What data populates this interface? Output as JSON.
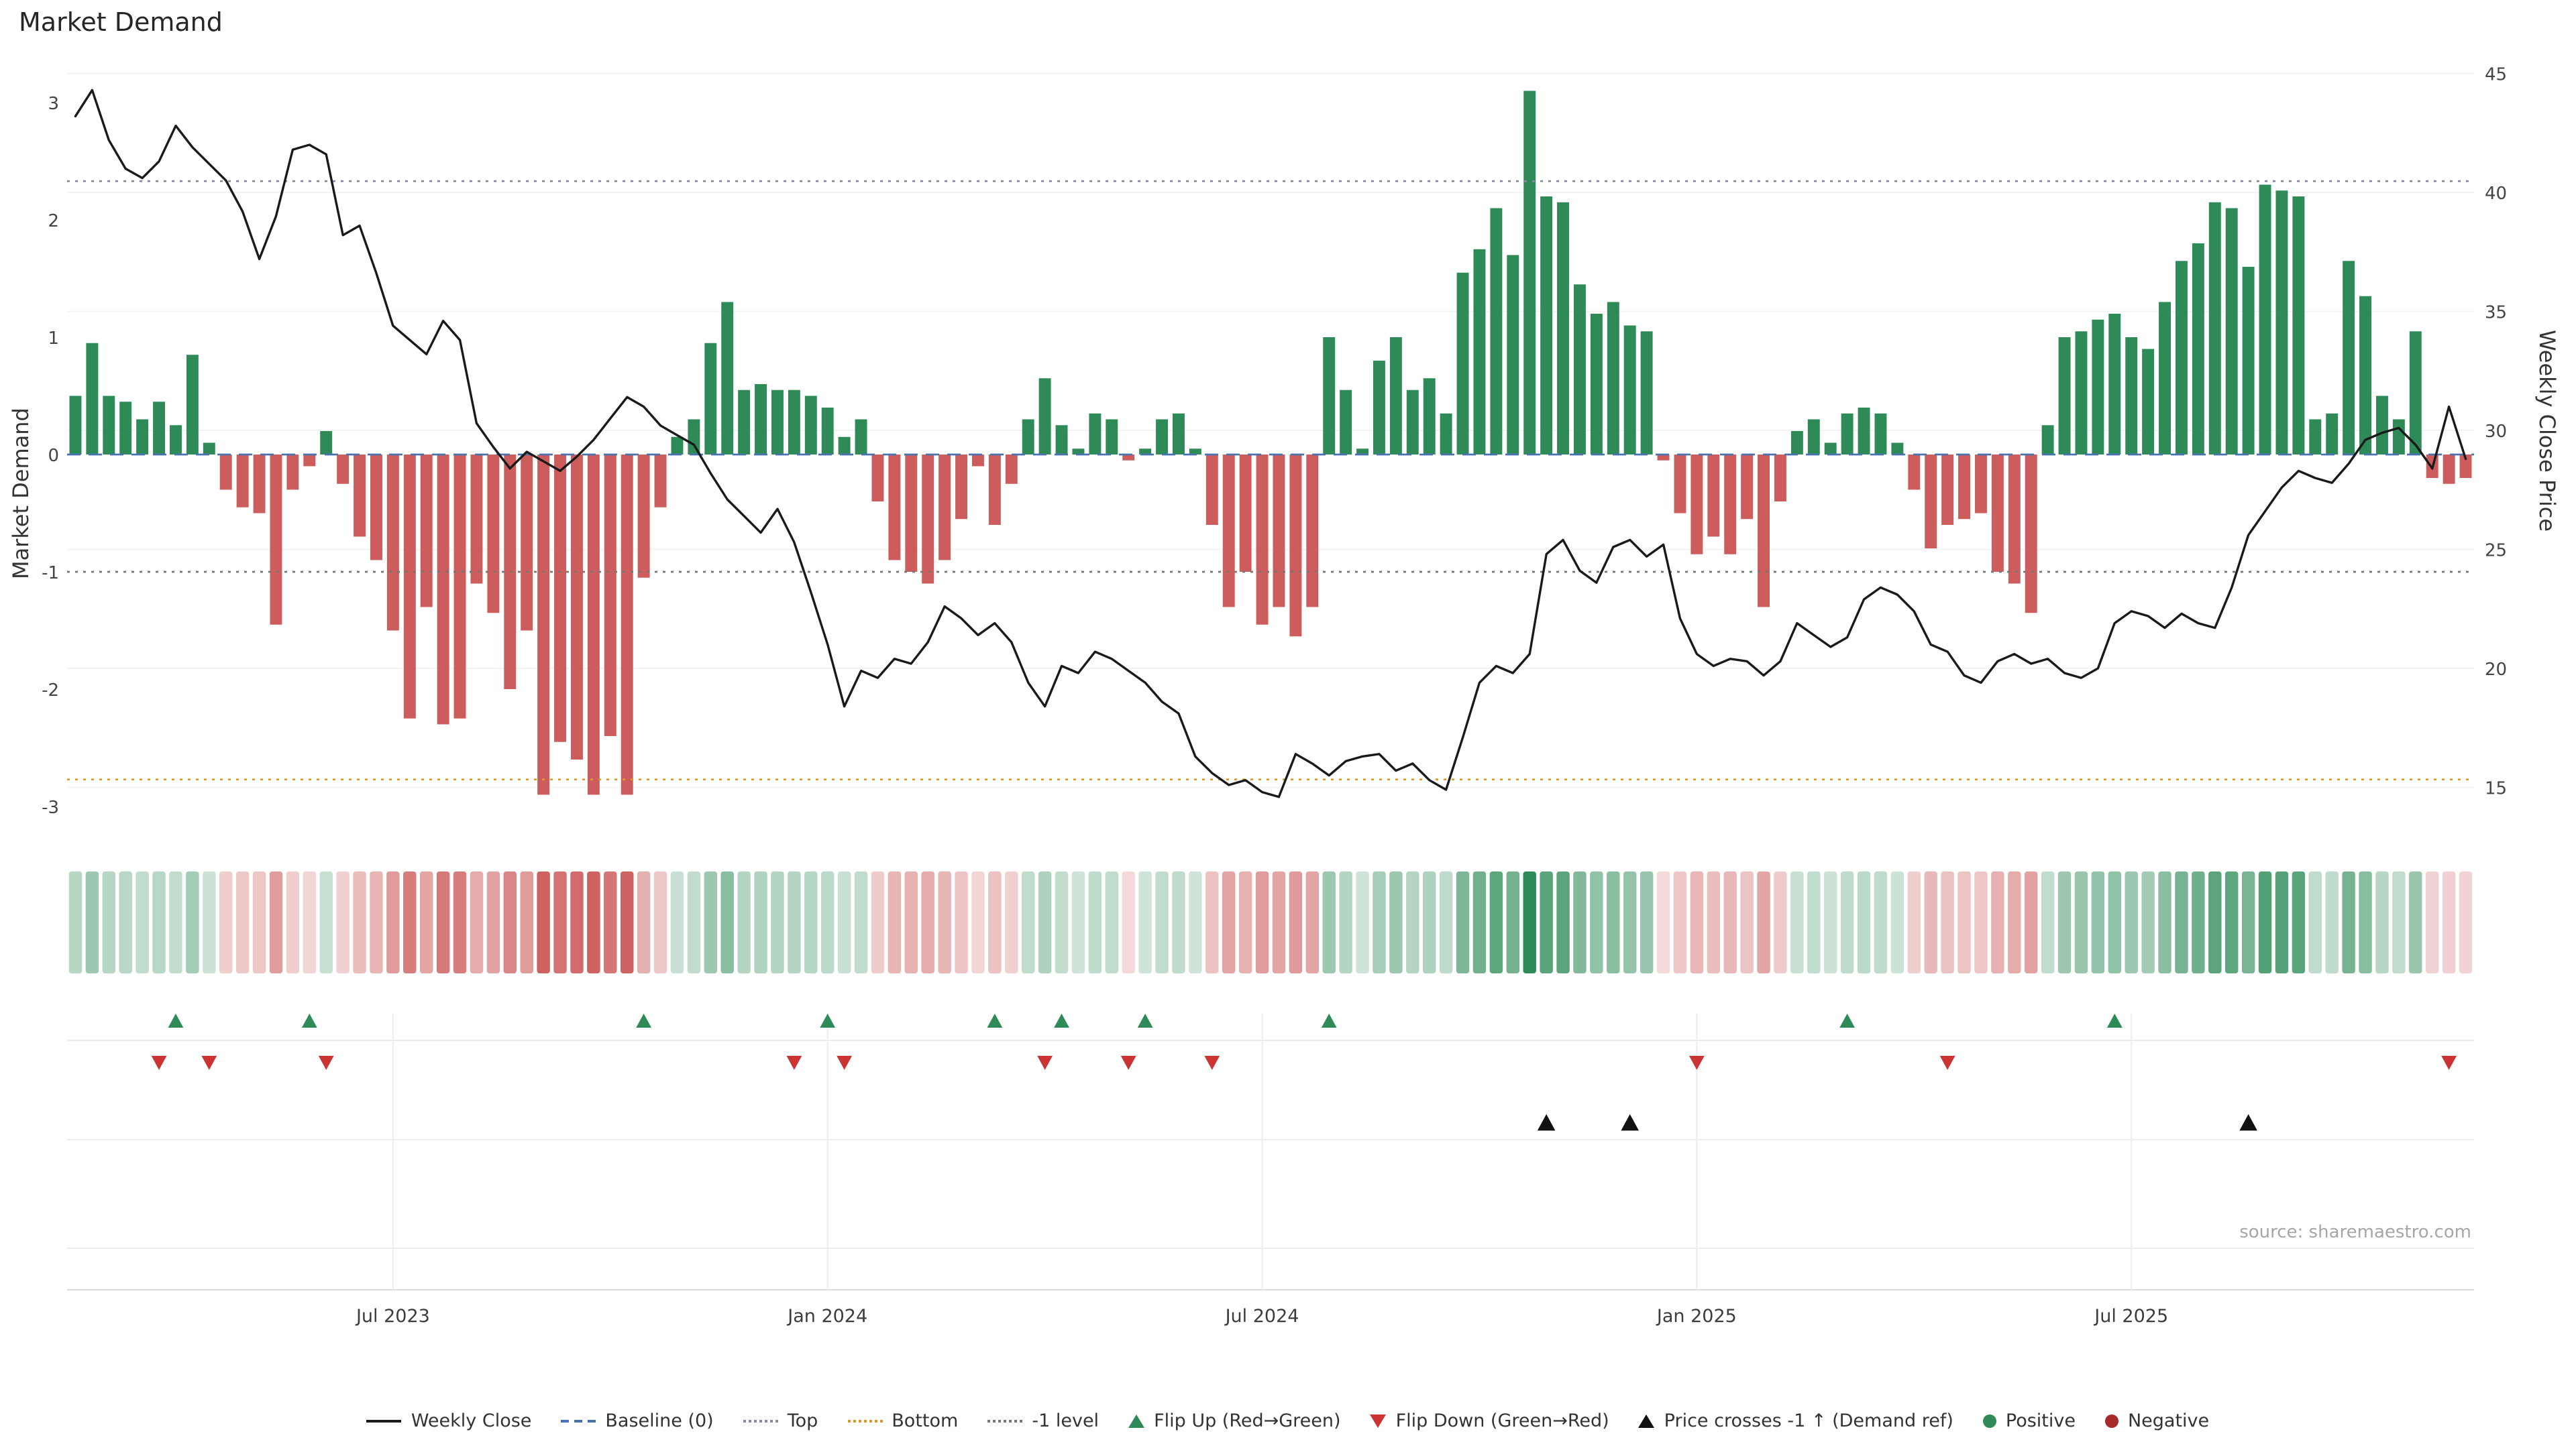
{
  "page": {
    "title": "Market Demand",
    "source": "source: sharemaestro.com"
  },
  "axes": {
    "left_label": "Market Demand",
    "right_label": "Weekly Close Price",
    "left_ticks": [
      -3,
      -2,
      -1,
      0,
      1,
      2,
      3
    ],
    "right_ticks": [
      15,
      20,
      25,
      30,
      35,
      40,
      45
    ],
    "xtick_labels": [
      "Jul 2023",
      "Jan 2024",
      "Jul 2024",
      "Jan 2025",
      "Jul 2025"
    ],
    "xtick_weeks": [
      20,
      46,
      72,
      98,
      124
    ]
  },
  "colors": {
    "bar_positive": "#2e8b57",
    "bar_negative": "#cd5c5c",
    "price_line": "#1a1a1a",
    "baseline": "#4a72b0",
    "top_line": "#8a8aa8",
    "bottom_line": "#d99a2b",
    "minus1_line": "#777777",
    "flip_up": "#2e8b57",
    "flip_down": "#cc3333",
    "price_cross": "#111111",
    "grid": "#f3f3f3",
    "panel_line": "#ececec",
    "axis_line": "#dcdcdc"
  },
  "chart_data": {
    "type": "bar",
    "title": "Market Demand",
    "x_unit": "week",
    "weeks": 144,
    "xtick_labels": [
      "Jul 2023",
      "Jan 2024",
      "Jul 2024",
      "Jan 2025",
      "Jul 2025"
    ],
    "xtick_weeks": [
      20,
      46,
      72,
      98,
      124
    ],
    "ylim_left": [
      -3.25,
      3.3
    ],
    "ylim_right": [
      13.5,
      45.5
    ],
    "ylabel_left": "Market Demand",
    "ylabel_right": "Weekly Close Price",
    "grid": "light horizontal",
    "legend_position": "bottom center",
    "series": [
      {
        "name": "Market Demand",
        "type": "bar",
        "axis": "left",
        "values": [
          0.5,
          0.95,
          0.5,
          0.45,
          0.3,
          0.45,
          0.25,
          0.85,
          0.1,
          -0.3,
          -0.45,
          -0.5,
          -1.45,
          -0.3,
          -0.1,
          0.2,
          -0.25,
          -0.7,
          -0.9,
          -1.5,
          -2.25,
          -1.3,
          -2.3,
          -2.25,
          -1.1,
          -1.35,
          -2.0,
          -1.5,
          -2.9,
          -2.45,
          -2.6,
          -2.9,
          -2.4,
          -2.9,
          -1.05,
          -0.45,
          0.15,
          0.3,
          0.95,
          1.3,
          0.55,
          0.6,
          0.55,
          0.55,
          0.5,
          0.4,
          0.15,
          0.3,
          -0.4,
          -0.9,
          -1.0,
          -1.1,
          -0.9,
          -0.55,
          -0.1,
          -0.6,
          -0.25,
          0.3,
          0.65,
          0.25,
          0.05,
          0.35,
          0.3,
          -0.05,
          0.05,
          0.3,
          0.35,
          0.05,
          -0.6,
          -1.3,
          -1.0,
          -1.45,
          -1.3,
          -1.55,
          -1.3,
          1.0,
          0.55,
          0.05,
          0.8,
          1.0,
          0.55,
          0.65,
          0.35,
          1.55,
          1.75,
          2.1,
          1.7,
          3.1,
          2.2,
          2.15,
          1.45,
          1.2,
          1.3,
          1.1,
          1.05,
          -0.05,
          -0.5,
          -0.85,
          -0.7,
          -0.85,
          -0.55,
          -1.3,
          -0.4,
          0.2,
          0.3,
          0.1,
          0.35,
          0.4,
          0.35,
          0.1,
          -0.3,
          -0.8,
          -0.6,
          -0.55,
          -0.5,
          -1.0,
          -1.1,
          -1.35,
          0.25,
          1.0,
          1.05,
          1.15,
          1.2,
          1.0,
          0.9,
          1.3,
          1.65,
          1.8,
          2.15,
          2.1,
          1.6,
          2.3,
          2.25,
          2.2,
          0.3,
          0.35,
          1.65,
          1.35,
          0.5,
          0.3,
          1.05,
          -0.2,
          -0.25,
          -0.2
        ]
      },
      {
        "name": "Weekly Close",
        "type": "line",
        "axis": "right",
        "values": [
          43.2,
          44.3,
          42.2,
          41.0,
          40.6,
          41.3,
          42.8,
          41.9,
          41.2,
          40.5,
          39.2,
          37.2,
          39.0,
          41.8,
          42.0,
          41.6,
          38.2,
          38.6,
          36.6,
          34.4,
          33.8,
          33.2,
          34.6,
          33.8,
          30.3,
          29.3,
          28.4,
          29.1,
          28.7,
          28.3,
          28.9,
          29.6,
          30.5,
          31.4,
          31.0,
          30.2,
          29.8,
          29.4,
          28.2,
          27.1,
          26.4,
          25.7,
          26.7,
          25.3,
          23.2,
          21.0,
          18.4,
          19.9,
          19.6,
          20.4,
          20.2,
          21.1,
          22.6,
          22.1,
          21.4,
          21.9,
          21.1,
          19.4,
          18.4,
          20.1,
          19.8,
          20.7,
          20.4,
          19.9,
          19.4,
          18.6,
          18.1,
          16.3,
          15.6,
          15.1,
          15.3,
          14.8,
          14.6,
          16.4,
          16.0,
          15.5,
          16.1,
          16.3,
          16.4,
          15.7,
          16.0,
          15.3,
          14.9,
          17.1,
          19.4,
          20.1,
          19.8,
          20.6,
          24.8,
          25.4,
          24.1,
          23.6,
          25.1,
          25.4,
          24.7,
          25.2,
          22.1,
          20.6,
          20.1,
          20.4,
          20.3,
          19.7,
          20.3,
          21.9,
          21.4,
          20.9,
          21.3,
          22.9,
          23.4,
          23.1,
          22.4,
          21.0,
          20.7,
          19.7,
          19.4,
          20.3,
          20.6,
          20.2,
          20.4,
          19.8,
          19.6,
          20.0,
          21.9,
          22.4,
          22.2,
          21.7,
          22.3,
          21.9,
          21.7,
          23.4,
          25.6,
          26.6,
          27.6,
          28.3,
          28.0,
          27.8,
          28.6,
          29.6,
          29.9,
          30.1,
          29.4,
          28.4,
          31.0,
          28.8
        ]
      }
    ],
    "reference_lines": [
      {
        "name": "Baseline (0)",
        "value": 0,
        "style": "dashed",
        "color": "#4a72b0"
      },
      {
        "name": "Top",
        "value": 2.33,
        "style": "dotted",
        "color": "#8a8aa8"
      },
      {
        "name": "Bottom",
        "value": -2.77,
        "style": "dotted",
        "color": "#d99a2b"
      },
      {
        "name": "-1 level",
        "value": -1,
        "style": "dotted",
        "color": "#777777"
      }
    ],
    "heatmap_strip": {
      "derived_from": "Market Demand sign and magnitude",
      "positive_color": "#2e8b57",
      "negative_color": "#cd5c5c"
    },
    "markers": {
      "flip_up_weeks": [
        7,
        15,
        35,
        46,
        56,
        60,
        65,
        76,
        107,
        123
      ],
      "flip_down_weeks": [
        6,
        9,
        16,
        44,
        47,
        59,
        64,
        69,
        98,
        113,
        143
      ],
      "price_cross_minus1_weeks": [
        89,
        94,
        131
      ]
    }
  },
  "legend": [
    {
      "label": "Weekly Close",
      "marker": "line",
      "color": "#1a1a1a"
    },
    {
      "label": "Baseline (0)",
      "marker": "dash",
      "color": "#4a72b0"
    },
    {
      "label": "Top",
      "marker": "dot",
      "color": "#8a8aa8"
    },
    {
      "label": "Bottom",
      "marker": "dot",
      "color": "#d99a2b"
    },
    {
      "label": "-1 level",
      "marker": "dot",
      "color": "#777777"
    },
    {
      "label": "Flip Up (Red→Green)",
      "marker": "triangle-up",
      "color": "#2e8b57"
    },
    {
      "label": "Flip Down (Green→Red)",
      "marker": "triangle-down",
      "color": "#cc3333"
    },
    {
      "label": "Price crosses -1 ↑ (Demand ref)",
      "marker": "triangle-up",
      "color": "#111111"
    },
    {
      "label": "Positive",
      "marker": "circle",
      "color": "#2e8b57"
    },
    {
      "label": "Negative",
      "marker": "circle",
      "color": "#a52a2a"
    }
  ]
}
